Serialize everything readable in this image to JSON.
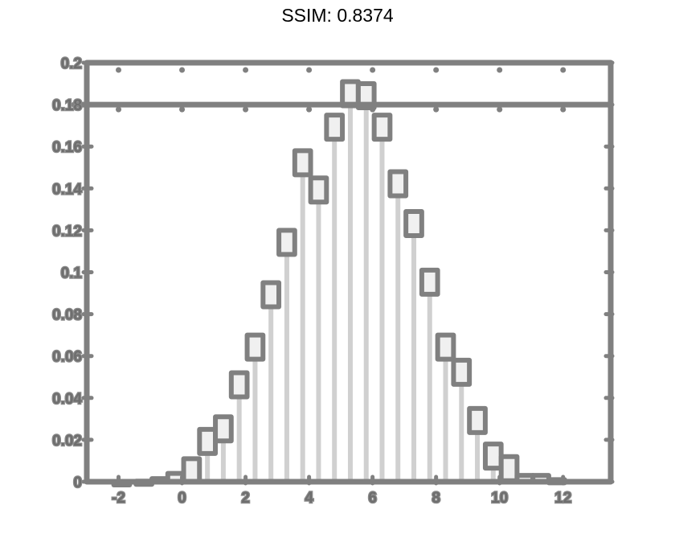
{
  "title": "SSIM: 0.8374",
  "colors": {
    "frame": "#808080",
    "bar_fill": "#f0f0f0",
    "bar_edge": "#808080",
    "stem": "#c8c8c8",
    "background": "#ffffff"
  },
  "chart_data": {
    "type": "bar",
    "title": "SSIM: 0.8374",
    "xlabel": "",
    "ylabel": "",
    "xlim": [
      -3,
      13.5
    ],
    "ylim": [
      0,
      0.2
    ],
    "xticks": [
      -2,
      0,
      2,
      4,
      6,
      8,
      10,
      12
    ],
    "xtick_labels": [
      "-2",
      "0",
      "2",
      "4",
      "6",
      "8",
      "10",
      "12"
    ],
    "yticks": [
      0,
      0.02,
      0.04,
      0.06,
      0.08,
      0.1,
      0.12,
      0.14,
      0.16,
      0.18,
      0.2
    ],
    "ytick_labels": [
      "0",
      "0.02",
      "0.04",
      "0.06",
      "0.08",
      "0.1",
      "0.12",
      "0.14",
      "0.16",
      "0.18",
      "0.2"
    ],
    "bin_width": 0.6,
    "x": [
      -1.9,
      -1.2,
      -0.7,
      -0.2,
      0.3,
      0.8,
      1.3,
      1.8,
      2.3,
      2.8,
      3.3,
      3.8,
      4.3,
      4.8,
      5.3,
      5.8,
      6.3,
      6.8,
      7.3,
      7.8,
      8.3,
      8.8,
      9.3,
      9.8,
      10.3,
      10.8,
      11.3,
      11.8
    ],
    "values": [
      0.0,
      0.0003,
      0.0015,
      0.004,
      0.011,
      0.025,
      0.031,
      0.052,
      0.07,
      0.095,
      0.12,
      0.158,
      0.145,
      0.175,
      0.191,
      0.19,
      0.175,
      0.148,
      0.129,
      0.101,
      0.07,
      0.058,
      0.035,
      0.018,
      0.012,
      0.003,
      0.003,
      0.001
    ],
    "grid": false,
    "legend": "none"
  }
}
